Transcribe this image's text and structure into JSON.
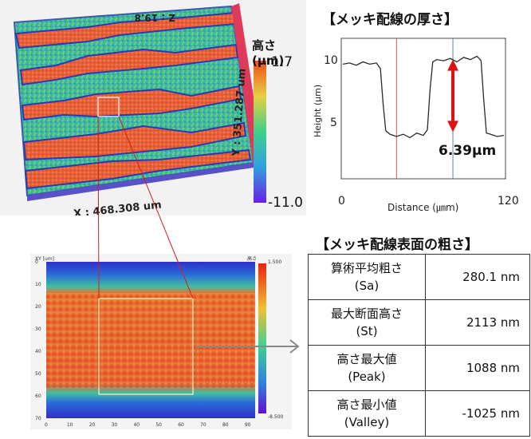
{
  "map3d": {
    "colorbar_title": "高さ(μm)",
    "colorbar_max": "1.7",
    "colorbar_min": "-11.0",
    "x_extent": "X : 468.308 um",
    "y_extent": "Y : 351.287 um",
    "z_extent_partial": "Z : 19.8"
  },
  "profile_title": "【メッキ配線の厚さ】",
  "chart_data": {
    "type": "line",
    "title": "【メッキ配線の厚さ】",
    "xlabel": "Distance (㎛m)",
    "ylabel": "Height (μm)",
    "xlim": [
      0,
      120
    ],
    "ylim": [
      0,
      12
    ],
    "x_ticks": [
      "0",
      "120"
    ],
    "y_ticks": [
      "5",
      "10"
    ],
    "grid": false,
    "series": [
      {
        "x": [
          0,
          5,
          10,
          15,
          20,
          25,
          28,
          30,
          32,
          35,
          40,
          45,
          50,
          55,
          60,
          63,
          65,
          67,
          70,
          75,
          80,
          85,
          90,
          95,
          100,
          103,
          105,
          107,
          110,
          115,
          120
        ],
        "values": [
          10.0,
          10.1,
          9.9,
          10.2,
          10.0,
          10.1,
          9.6,
          6.5,
          4.1,
          3.8,
          3.6,
          3.8,
          3.5,
          3.9,
          3.7,
          4.2,
          7.8,
          10.2,
          10.4,
          10.3,
          10.5,
          10.2,
          10.6,
          10.4,
          10.7,
          10.3,
          6.8,
          3.9,
          3.8,
          3.6,
          3.7
        ]
      }
    ],
    "markers_x": [
      40,
      82
    ],
    "annotation": "6.39μm"
  },
  "surface_table_title": "【メッキ配線表面の粗さ】",
  "heatmap": {
    "axis_label_tl": "XY [um]",
    "axis_label_tr": "高さ",
    "colorbar_max": "1.500",
    "colorbar_min": "-8.500",
    "y_ticks": [
      "0",
      "10",
      "20",
      "30",
      "40",
      "50",
      "60",
      "70"
    ],
    "x_ticks": [
      "0",
      "10",
      "20",
      "30",
      "40",
      "50",
      "60",
      "70",
      "80",
      "90"
    ]
  },
  "table": {
    "rows": [
      {
        "label1": "算術平均粗さ",
        "label2": "(Sa)",
        "value": "280.1 nm"
      },
      {
        "label1": "最大断面高さ",
        "label2": "(St)",
        "value": "2113 nm"
      },
      {
        "label1": "高さ最大値",
        "label2": "(Peak)",
        "value": "1088 nm"
      },
      {
        "label1": "高さ最小値",
        "label2": "(Valley)",
        "value": "-1025 nm"
      }
    ]
  },
  "colors": {
    "high": "#e8401e",
    "low": "#3a30d0",
    "mid": "#38c888",
    "arrow": "#e01010",
    "plateau": "#e66a3c",
    "wall": "#e03a5a"
  }
}
